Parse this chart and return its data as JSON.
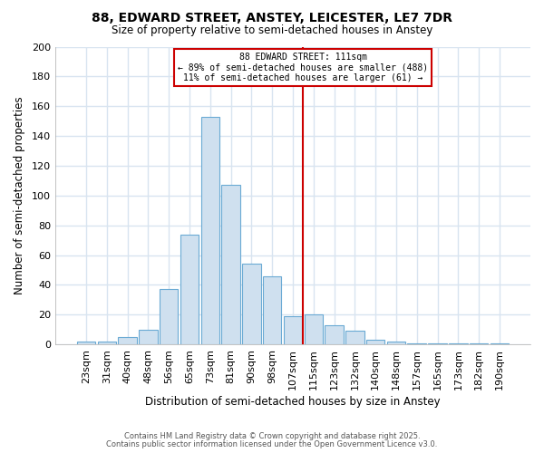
{
  "title1": "88, EDWARD STREET, ANSTEY, LEICESTER, LE7 7DR",
  "title2": "Size of property relative to semi-detached houses in Anstey",
  "xlabel": "Distribution of semi-detached houses by size in Anstey",
  "ylabel": "Number of semi-detached properties",
  "bar_labels": [
    "23sqm",
    "31sqm",
    "40sqm",
    "48sqm",
    "56sqm",
    "65sqm",
    "73sqm",
    "81sqm",
    "90sqm",
    "98sqm",
    "107sqm",
    "115sqm",
    "123sqm",
    "132sqm",
    "140sqm",
    "148sqm",
    "157sqm",
    "165sqm",
    "173sqm",
    "182sqm",
    "190sqm"
  ],
  "bar_values": [
    2,
    2,
    5,
    10,
    37,
    74,
    153,
    107,
    54,
    46,
    19,
    20,
    13,
    9,
    3,
    2,
    1,
    1,
    1,
    1,
    1
  ],
  "bar_color": "#cfe0ef",
  "bar_edge_color": "#6aaad4",
  "property_label": "88 EDWARD STREET: 111sqm",
  "annotation_line1": "← 89% of semi-detached houses are smaller (488)",
  "annotation_line2": "11% of semi-detached houses are larger (61) →",
  "red_line_color": "#cc0000",
  "bg_color": "#ffffff",
  "grid_color": "#d8e4f0",
  "ylim": [
    0,
    200
  ],
  "yticks": [
    0,
    20,
    40,
    60,
    80,
    100,
    120,
    140,
    160,
    180,
    200
  ],
  "footnote1": "Contains HM Land Registry data © Crown copyright and database right 2025.",
  "footnote2": "Contains public sector information licensed under the Open Government Licence v3.0."
}
